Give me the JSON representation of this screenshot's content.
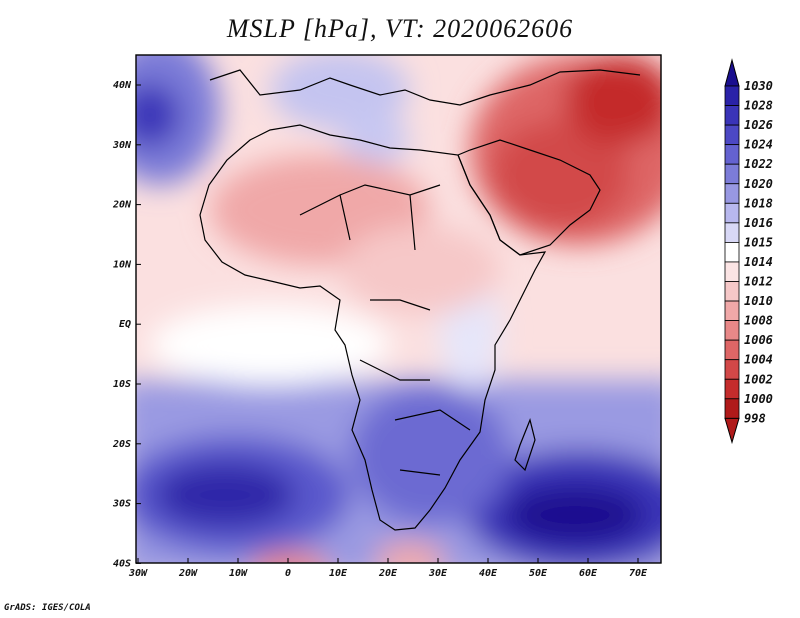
{
  "title": "MSLP [hPa], VT: 2020062606",
  "credit": "GrADS: IGES/COLA",
  "map": {
    "lat_labels": [
      "40N",
      "30N",
      "20N",
      "10N",
      "EQ",
      "10S",
      "20S",
      "30S",
      "40S"
    ],
    "lon_labels": [
      "30W",
      "20W",
      "10W",
      "0",
      "10E",
      "20E",
      "30E",
      "40E",
      "50E",
      "60E",
      "70E"
    ],
    "lon_range": [
      -30,
      75
    ],
    "lat_range": [
      -40,
      45
    ]
  },
  "colorbar": {
    "levels": [
      "1030",
      "1028",
      "1026",
      "1024",
      "1022",
      "1020",
      "1018",
      "1016",
      "1015",
      "1014",
      "1012",
      "1010",
      "1008",
      "1006",
      "1004",
      "1002",
      "1000",
      "998"
    ],
    "colors": [
      "#1a0f8f",
      "#2a22a8",
      "#3a34b8",
      "#4c48c4",
      "#6462d0",
      "#7c7cd8",
      "#9898e2",
      "#b8b8ee",
      "#d8d8f6",
      "#ffffff",
      "#fbe4e4",
      "#f6c8c8",
      "#f0a8a8",
      "#e88888",
      "#de6666",
      "#d24848",
      "#c42c2c",
      "#b01a1a"
    ]
  }
}
